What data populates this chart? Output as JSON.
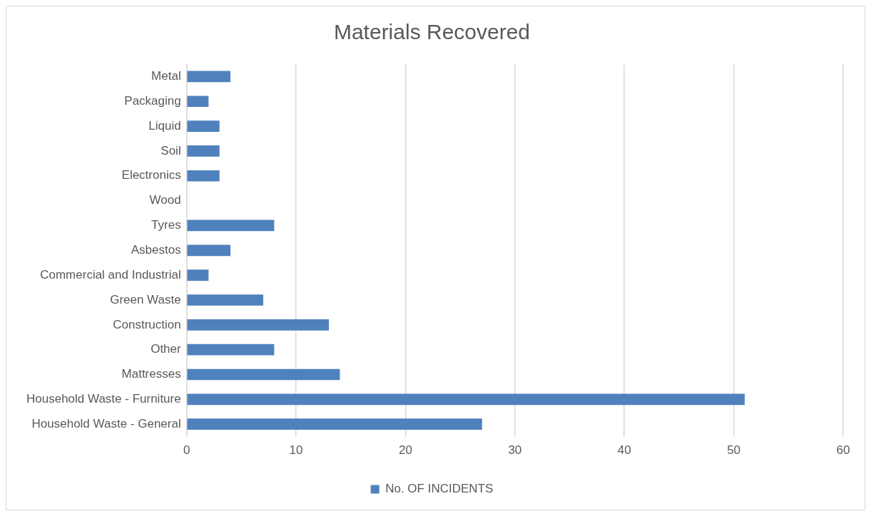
{
  "chart_data": {
    "type": "bar",
    "title": "Materials Recovered",
    "orientation": "horizontal",
    "categories": [
      "Metal",
      "Packaging",
      "Liquid",
      "Soil",
      "Electronics",
      "Wood",
      "Tyres",
      "Asbestos",
      "Commercial and Industrial",
      "Green Waste",
      "Construction",
      "Other",
      "Mattresses",
      "Household Waste - Furniture",
      "Household Waste - General"
    ],
    "series": [
      {
        "name": "No. OF INCIDENTS",
        "color": "#4f81bd",
        "values": [
          4,
          2,
          3,
          3,
          3,
          0,
          8,
          4,
          2,
          7,
          13,
          8,
          14,
          51,
          27
        ]
      }
    ],
    "xlim": [
      0,
      60
    ],
    "xticks": [
      0,
      10,
      20,
      30,
      40,
      50,
      60
    ],
    "grid": "x",
    "legend": "bottom"
  }
}
